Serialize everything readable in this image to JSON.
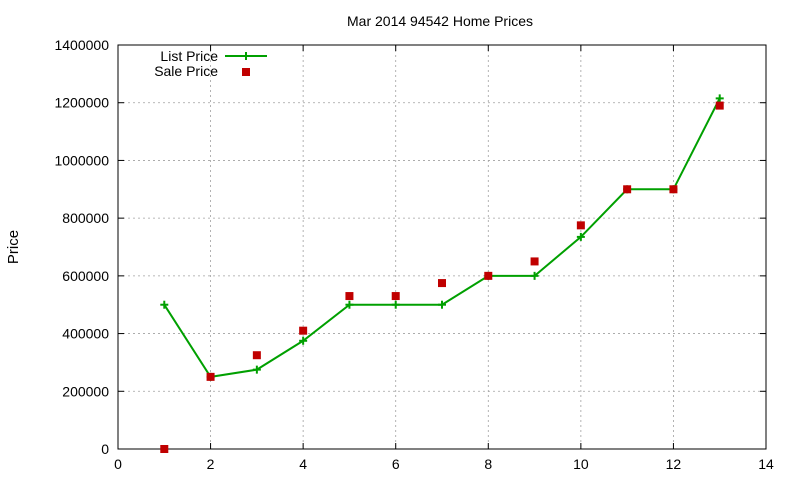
{
  "chart_data": {
    "type": "line",
    "title": "Mar 2014 94542 Home Prices",
    "xlabel": "",
    "ylabel": "Price",
    "xlim": [
      0,
      14
    ],
    "ylim": [
      0,
      1400000
    ],
    "x_ticks": [
      0,
      2,
      4,
      6,
      8,
      10,
      12,
      14
    ],
    "y_ticks": [
      0,
      200000,
      400000,
      600000,
      800000,
      1000000,
      1200000,
      1400000
    ],
    "grid": true,
    "legend_position": "top-left",
    "series": [
      {
        "name": "List Price",
        "style": "line-plus",
        "color": "#00a000",
        "x": [
          1,
          2,
          3,
          4,
          5,
          6,
          7,
          8,
          9,
          10,
          11,
          12,
          13
        ],
        "values": [
          500000,
          250000,
          275000,
          375000,
          500000,
          500000,
          500000,
          600000,
          600000,
          735000,
          900000,
          900000,
          1215000
        ]
      },
      {
        "name": "Sale Price",
        "style": "square-points",
        "color": "#c00000",
        "x": [
          1,
          2,
          3,
          4,
          5,
          6,
          7,
          8,
          9,
          10,
          11,
          12,
          13
        ],
        "values": [
          0,
          250000,
          325000,
          410000,
          530000,
          530000,
          575000,
          600000,
          650000,
          775000,
          900000,
          900000,
          1190000
        ]
      }
    ]
  }
}
